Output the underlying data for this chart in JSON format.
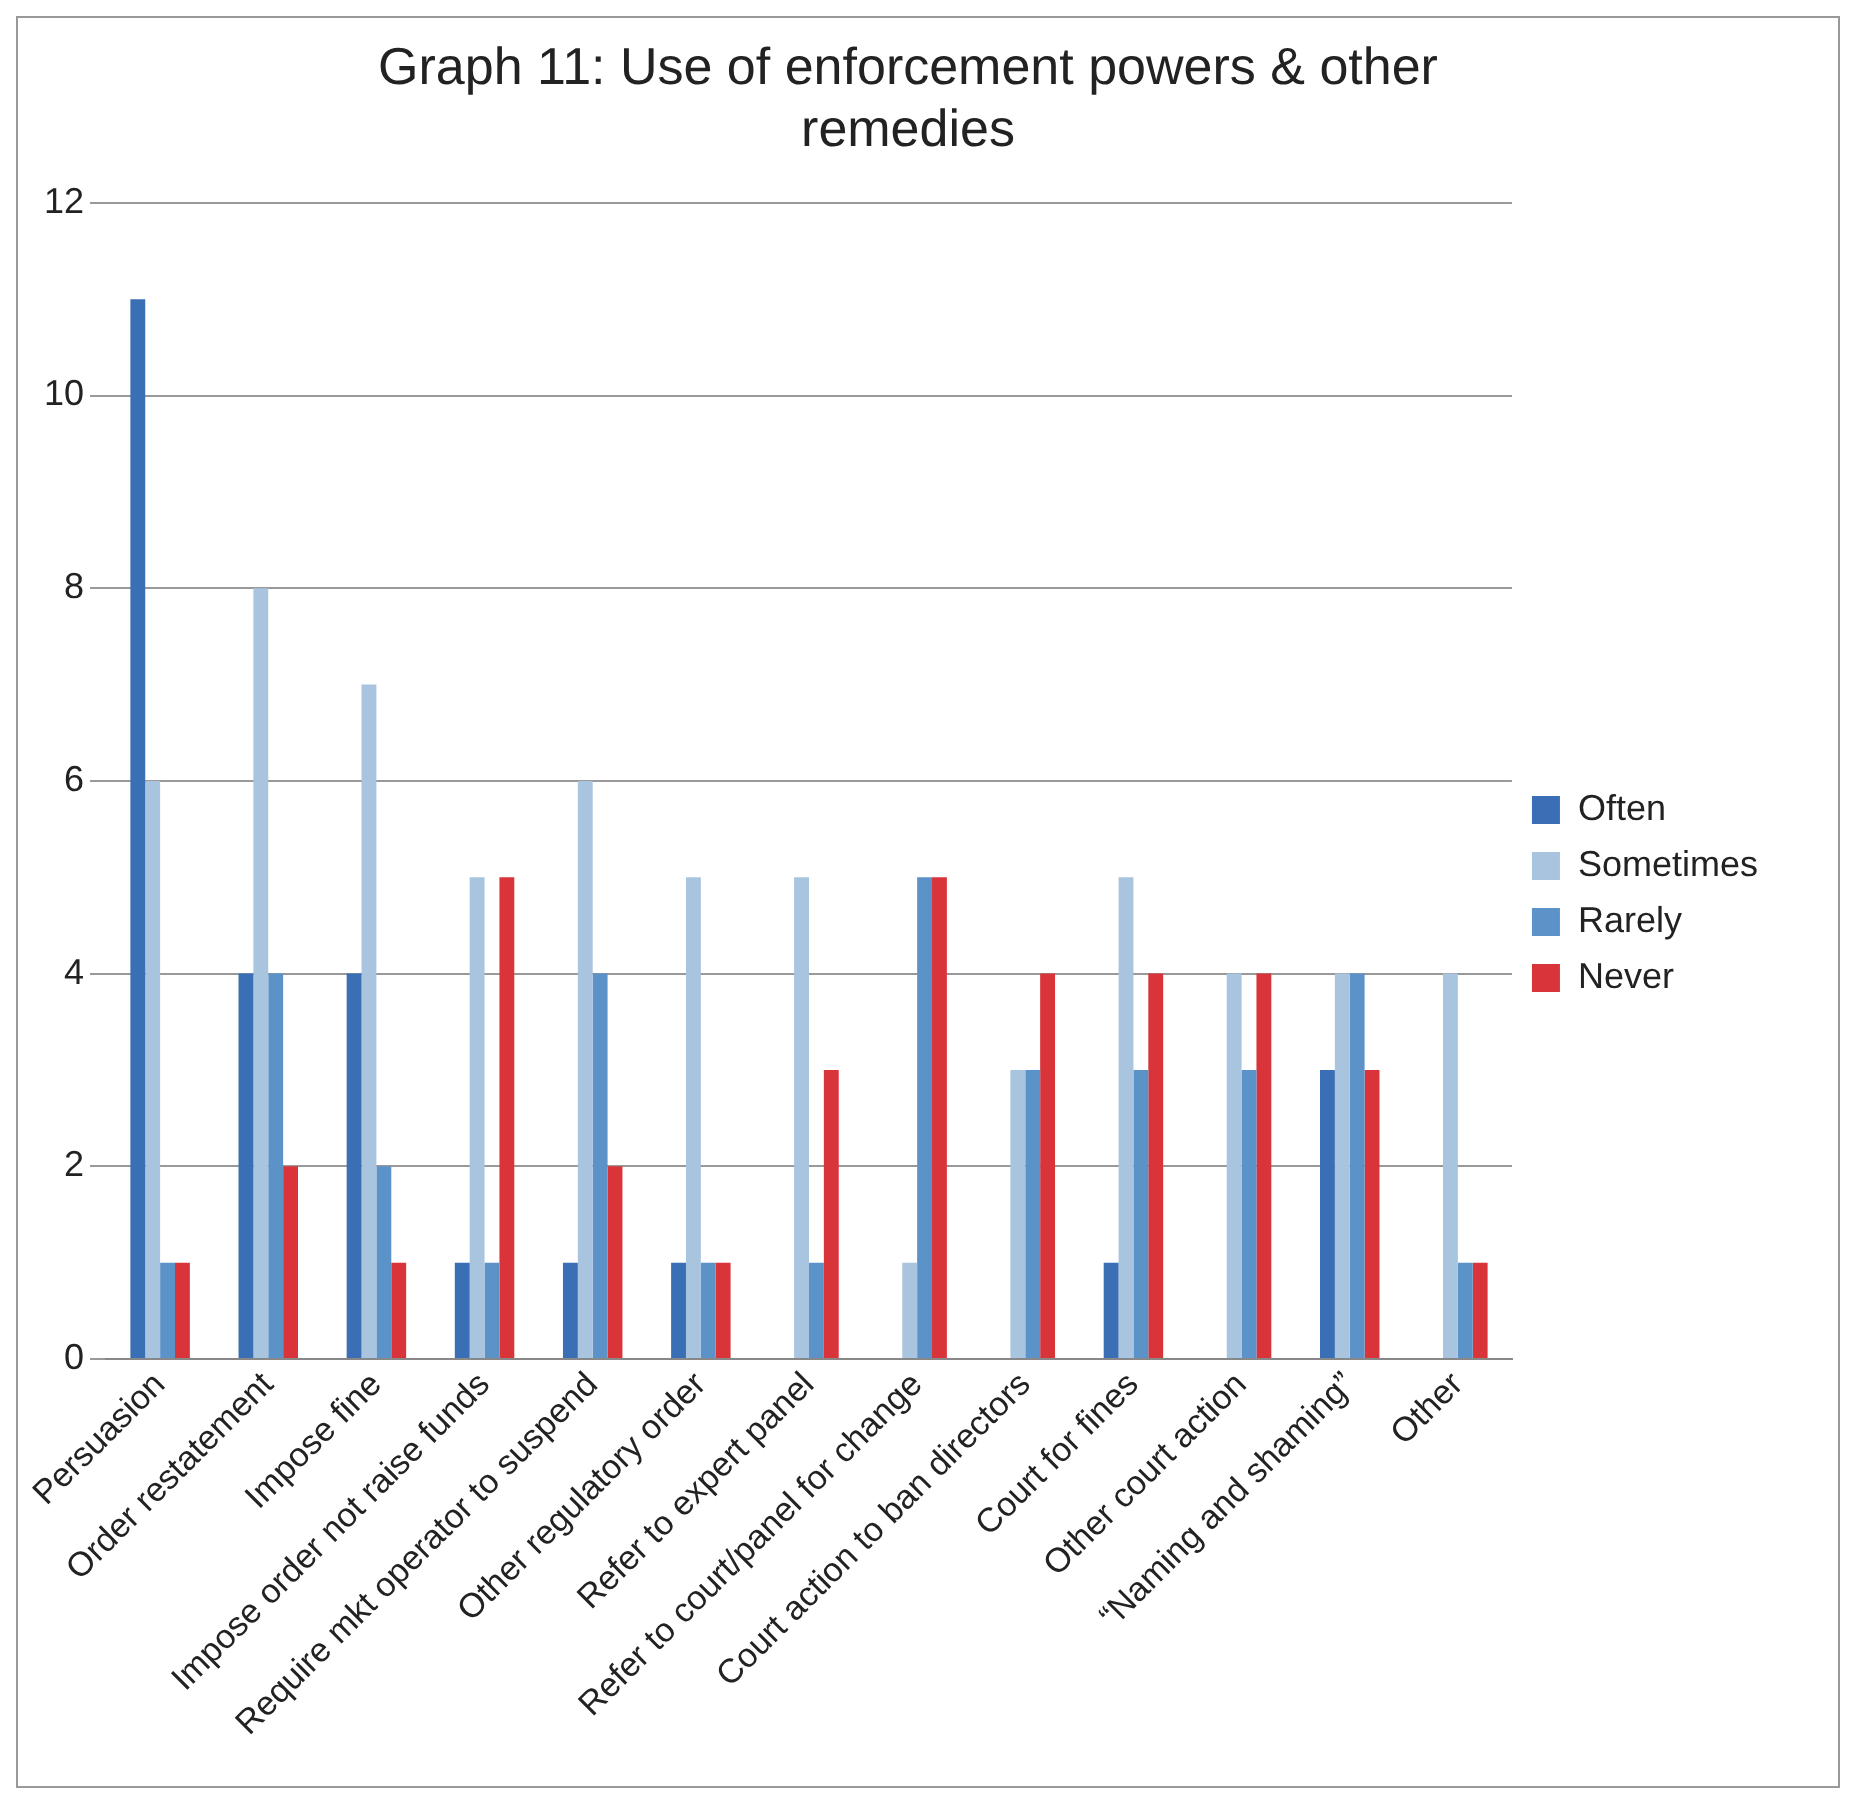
{
  "chart_data": {
    "type": "bar",
    "title": "Graph 11: Use of enforcement powers & other remedies",
    "categories": [
      "Persuasion",
      "Order restatement",
      "Impose fine",
      "Impose order not raise funds",
      "Require mkt operator to suspend",
      "Other regulatory order",
      "Refer to expert panel",
      "Refer to court/panel for change",
      "Court action to ban directors",
      "Court for fines",
      "Other court action",
      "“Naming and shaming”",
      "Other"
    ],
    "series": [
      {
        "name": "Often",
        "color": "#3a6eb5",
        "values": [
          11,
          4,
          4,
          1,
          1,
          1,
          0,
          0,
          0,
          1,
          0,
          3,
          0
        ]
      },
      {
        "name": "Sometimes",
        "color": "#a9c4de",
        "values": [
          6,
          8,
          7,
          5,
          6,
          5,
          5,
          1,
          3,
          5,
          4,
          4,
          4
        ]
      },
      {
        "name": "Rarely",
        "color": "#5b93c8",
        "values": [
          1,
          4,
          2,
          1,
          4,
          1,
          1,
          5,
          3,
          3,
          3,
          4,
          1
        ]
      },
      {
        "name": "Never",
        "color": "#d9343a",
        "values": [
          1,
          2,
          1,
          5,
          2,
          1,
          3,
          5,
          4,
          4,
          4,
          3,
          1
        ]
      }
    ],
    "ylim": [
      0,
      12
    ],
    "yticks": [
      0,
      2,
      4,
      6,
      8,
      10,
      12
    ],
    "grid": "y",
    "legend": "right"
  }
}
